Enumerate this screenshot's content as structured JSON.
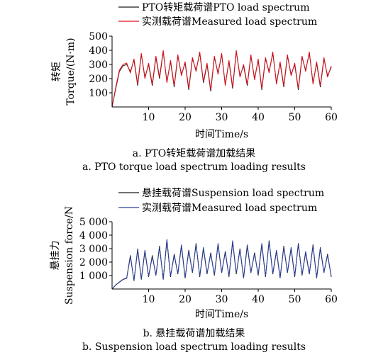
{
  "chart_data": [
    {
      "type": "line",
      "xlabel": "时间Time/s",
      "ylabel": [
        "转矩",
        "Torque/(N·m)"
      ],
      "xlim": [
        0,
        60
      ],
      "ylim": [
        0,
        500
      ],
      "xticks": [
        10,
        20,
        30,
        40,
        50,
        60
      ],
      "xtick_labels": [
        "10",
        "20",
        "30",
        "40",
        "50",
        "60"
      ],
      "yticks": [
        100,
        200,
        300,
        400,
        500
      ],
      "ytick_labels": [
        "100",
        "200",
        "300",
        "400",
        "500"
      ],
      "legend_position": "top",
      "grid": false,
      "series": [
        {
          "name": "PTO转矩载荷谱PTO load spectrum",
          "color": "#1a1a1a",
          "x": [
            0,
            1,
            2,
            3,
            4,
            5,
            6,
            7,
            8,
            9,
            10,
            11,
            12,
            13,
            14,
            15,
            16,
            17,
            18,
            19,
            20,
            21,
            22,
            23,
            24,
            25,
            26,
            27,
            28,
            29,
            30,
            31,
            32,
            33,
            34,
            35,
            36,
            37,
            38,
            39,
            40,
            41,
            42,
            43,
            44,
            45,
            46,
            47,
            48,
            49,
            50,
            51,
            52,
            53,
            54,
            55,
            56,
            57,
            58,
            59,
            60
          ],
          "y": [
            0,
            130,
            250,
            290,
            300,
            250,
            330,
            150,
            370,
            210,
            300,
            150,
            350,
            200,
            390,
            180,
            320,
            140,
            360,
            230,
            310,
            120,
            340,
            260,
            380,
            170,
            300,
            110,
            350,
            240,
            370,
            160,
            320,
            130,
            390,
            220,
            290,
            150,
            360,
            200,
            330,
            120,
            340,
            250,
            380,
            170,
            310,
            140,
            360,
            230,
            300,
            120,
            350,
            260,
            380,
            170,
            310,
            140,
            340,
            220,
            280
          ]
        },
        {
          "name": "实测载荷谱Measured load spectrum",
          "color": "#e0101a",
          "x": [
            0,
            1,
            2,
            3,
            4,
            5,
            6,
            7,
            8,
            9,
            10,
            11,
            12,
            13,
            14,
            15,
            16,
            17,
            18,
            19,
            20,
            21,
            22,
            23,
            24,
            25,
            26,
            27,
            28,
            29,
            30,
            31,
            32,
            33,
            34,
            35,
            36,
            37,
            38,
            39,
            40,
            41,
            42,
            43,
            44,
            45,
            46,
            47,
            48,
            49,
            50,
            51,
            52,
            53,
            54,
            55,
            56,
            57,
            58,
            59,
            60
          ],
          "y": [
            0,
            140,
            260,
            300,
            310,
            240,
            340,
            160,
            380,
            200,
            310,
            160,
            360,
            210,
            400,
            170,
            330,
            150,
            370,
            220,
            320,
            130,
            350,
            250,
            390,
            180,
            310,
            120,
            360,
            230,
            380,
            150,
            330,
            140,
            400,
            210,
            300,
            160,
            370,
            190,
            340,
            130,
            350,
            240,
            390,
            160,
            320,
            150,
            370,
            220,
            310,
            130,
            360,
            250,
            390,
            160,
            320,
            150,
            350,
            210,
            290
          ]
        }
      ]
    },
    {
      "type": "line",
      "xlabel": "时间Time/s",
      "ylabel": [
        "悬挂力",
        "Suspension force/N"
      ],
      "xlim": [
        0,
        60
      ],
      "ylim": [
        0,
        5000
      ],
      "xticks": [
        10,
        20,
        30,
        40,
        50,
        60
      ],
      "xtick_labels": [
        "10",
        "20",
        "30",
        "40",
        "50",
        "60"
      ],
      "yticks": [
        1000,
        2000,
        3000,
        4000,
        5000
      ],
      "ytick_labels": [
        "1 000",
        "2 000",
        "3 000",
        "4 000",
        "5 000"
      ],
      "legend_position": "top",
      "grid": false,
      "series": [
        {
          "name": "悬挂载荷谱Suspension load spectrum",
          "color": "#1a1a1a",
          "x": [
            0,
            1,
            2,
            3,
            4,
            5,
            6,
            7,
            8,
            9,
            10,
            11,
            12,
            13,
            14,
            15,
            16,
            17,
            18,
            19,
            20,
            21,
            22,
            23,
            24,
            25,
            26,
            27,
            28,
            29,
            30,
            31,
            32,
            33,
            34,
            35,
            36,
            37,
            38,
            39,
            40,
            41,
            42,
            43,
            44,
            45,
            46,
            47,
            48,
            49,
            50,
            51,
            52,
            53,
            54,
            55,
            56,
            57,
            58,
            59,
            60
          ],
          "y": [
            0,
            300,
            500,
            700,
            800,
            2500,
            600,
            3000,
            700,
            2800,
            900,
            2500,
            1000,
            3200,
            700,
            3600,
            900,
            2600,
            1100,
            3200,
            800,
            2900,
            1200,
            3400,
            900,
            3000,
            1100,
            2700,
            1000,
            3300,
            1200,
            2800,
            900,
            3500,
            1100,
            3000,
            800,
            3200,
            1200,
            2700,
            1000,
            3300,
            900,
            3600,
            1100,
            2800,
            800,
            3200,
            1200,
            3000,
            900,
            3400,
            1000,
            2700,
            1100,
            3300,
            800,
            3000,
            1200,
            2600,
            900
          ]
        },
        {
          "name": "实测载荷谱Measured load spectrum",
          "color": "#2b3f9c",
          "x": [
            0,
            1,
            2,
            3,
            4,
            5,
            6,
            7,
            8,
            9,
            10,
            11,
            12,
            13,
            14,
            15,
            16,
            17,
            18,
            19,
            20,
            21,
            22,
            23,
            24,
            25,
            26,
            27,
            28,
            29,
            30,
            31,
            32,
            33,
            34,
            35,
            36,
            37,
            38,
            39,
            40,
            41,
            42,
            43,
            44,
            45,
            46,
            47,
            48,
            49,
            50,
            51,
            52,
            53,
            54,
            55,
            56,
            57,
            58,
            59,
            60
          ],
          "y": [
            0,
            300,
            520,
            720,
            820,
            2400,
            650,
            2900,
            750,
            2900,
            950,
            2400,
            1050,
            3100,
            750,
            3700,
            950,
            2500,
            1150,
            3300,
            850,
            2800,
            1250,
            3300,
            950,
            3100,
            1150,
            2600,
            1050,
            3400,
            1250,
            2700,
            950,
            3600,
            1150,
            2900,
            850,
            3300,
            1250,
            2600,
            1050,
            3400,
            950,
            3500,
            1150,
            2900,
            850,
            3100,
            1250,
            3100,
            950,
            3300,
            1050,
            2800,
            1150,
            3200,
            850,
            3100,
            1250,
            2500,
            950
          ]
        }
      ]
    }
  ],
  "captions": {
    "a_zh": "a. PTO转矩载荷谱加载结果",
    "a_en": "a. PTO torque load spectrum loading results",
    "b_zh": "b. 悬挂载荷谱加载结果",
    "b_en": "b. Suspension load spectrum loading results"
  }
}
